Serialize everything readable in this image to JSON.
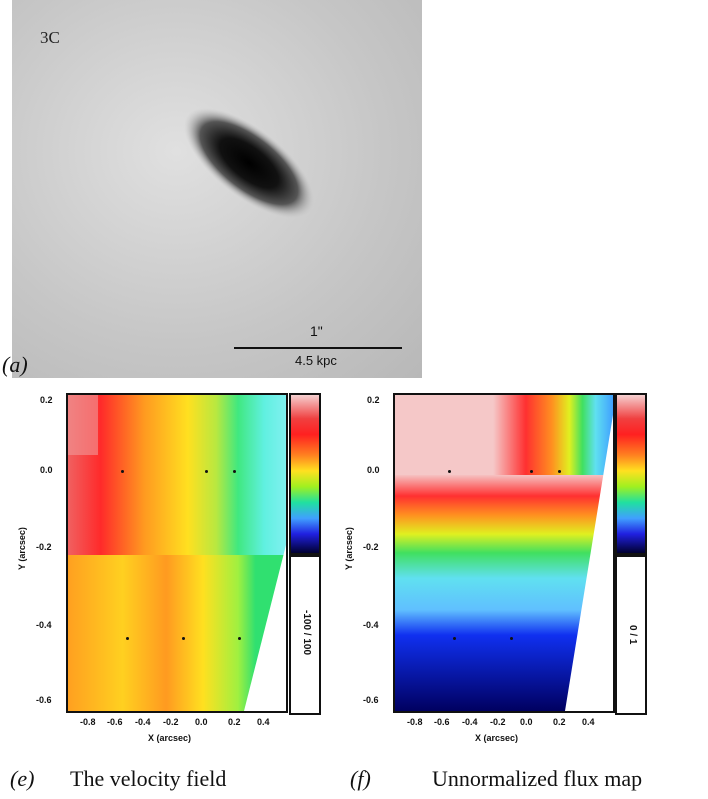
{
  "panel_a": {
    "letter": "(a)",
    "object_id": "3C",
    "scale_top": "1\"",
    "scale_bottom": "4.5 kpc"
  },
  "panel_e": {
    "letter": "(e)",
    "caption": "The velocity field",
    "x_ticks": [
      "-0.8",
      "-0.6",
      "-0.4",
      "-0.2",
      "0.0",
      "0.2",
      "0.4"
    ],
    "y_ticks": [
      "0.2",
      "0.0",
      "-0.2",
      "-0.4",
      "-0.6"
    ],
    "x_title": "X (arcsec)",
    "y_title": "Y (arcsec)",
    "colorbar_label": "-100 / 100"
  },
  "panel_f": {
    "letter": "(f)",
    "caption": "Unnormalized flux map",
    "x_ticks": [
      "-0.8",
      "-0.6",
      "-0.4",
      "-0.2",
      "0.0",
      "0.2",
      "0.4"
    ],
    "y_ticks": [
      "0.2",
      "0.0",
      "-0.2",
      "-0.4",
      "-0.6"
    ],
    "x_title": "X (arcsec)",
    "y_title": "Y (arcsec)",
    "colorbar_label": "0 / 1"
  }
}
